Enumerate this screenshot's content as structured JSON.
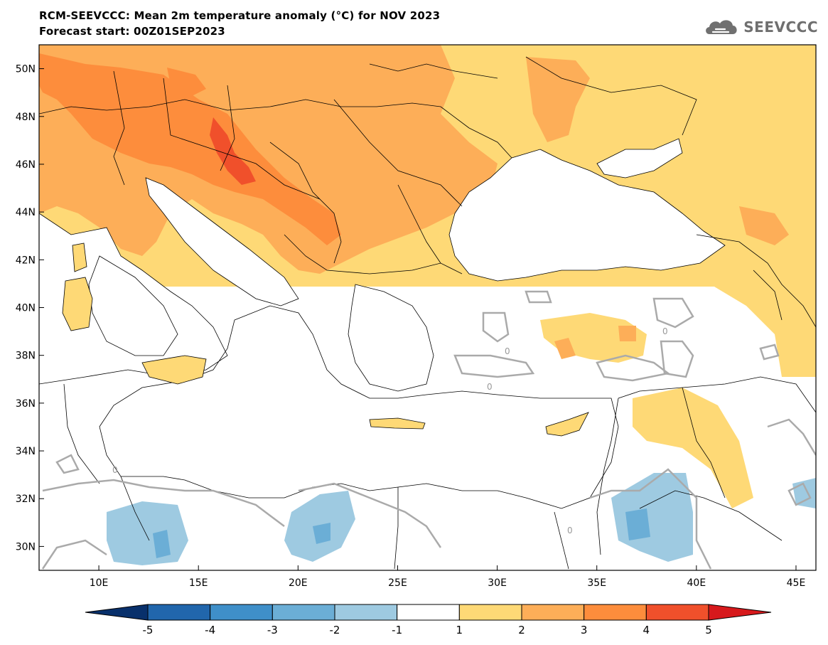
{
  "header": {
    "title": "RCM-SEEVCCC: Mean 2m temperature anomaly (°C) for NOV 2023",
    "subtitle": "Forecast start: 00Z01SEP2023",
    "logo_text": "SEEVCCC",
    "logo_icon": "cloud-icon"
  },
  "map": {
    "lon_range": [
      7,
      46
    ],
    "lat_range": [
      29,
      51
    ],
    "lat_ticks": [
      "50N",
      "48N",
      "46N",
      "44N",
      "42N",
      "40N",
      "38N",
      "36N",
      "34N",
      "32N",
      "30N"
    ],
    "lon_ticks": [
      "10E",
      "15E",
      "20E",
      "25E",
      "30E",
      "35E",
      "40E",
      "45E"
    ],
    "contour_zero_label": "0"
  },
  "colorbar": {
    "labels": [
      "-5",
      "-4",
      "-3",
      "-2",
      "-1",
      "1",
      "2",
      "3",
      "4",
      "5"
    ],
    "colors": [
      "#08306b",
      "#2166ac",
      "#3f8fc9",
      "#6baed6",
      "#9ecae1",
      "#ffffff",
      "#fed976",
      "#fdae58",
      "#fd8d3c",
      "#f0502b",
      "#d7191c"
    ]
  }
}
